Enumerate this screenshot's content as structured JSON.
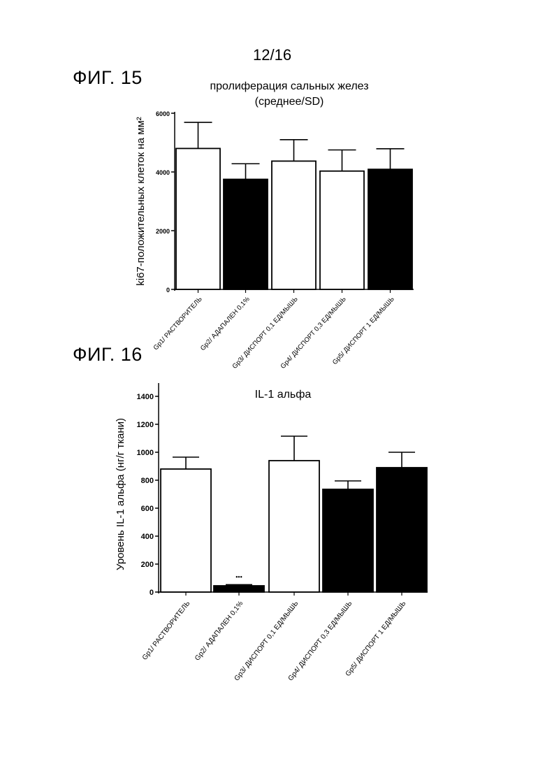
{
  "page_number": "12/16",
  "figures": [
    {
      "label": "ФИГ. 15"
    },
    {
      "label": "ФИГ. 16"
    }
  ],
  "chart_data": [
    {
      "type": "bar",
      "title": "пролиферация сальных желез",
      "subtitle": "(среднее/SD)",
      "ylabel": "ki67-положительных клеток на мм²",
      "ylim": [
        0,
        6000
      ],
      "yticks": [
        0,
        2000,
        4000,
        6000
      ],
      "categories": [
        "Gp1/ РАСТВОРИТЕЛЬ",
        "Gp2/ АДАПАЛЕН 0,1%",
        "Gp3/ ДИСПОРТ 0,1 ЕД/МЫШЬ",
        "Gp4/ ДИСПОРТ 0,3 ЕД/МЫШЬ",
        "Gp5/ ДИСПОРТ 1 ЕД/МЫШЬ"
      ],
      "values": [
        4800,
        3750,
        4370,
        4030,
        4090
      ],
      "errors": [
        890,
        530,
        730,
        720,
        700
      ],
      "bar_colors": [
        "#ffffff",
        "#000000",
        "#ffffff",
        "#ffffff",
        "#000000"
      ]
    },
    {
      "type": "bar",
      "title": "IL-1 альфа",
      "ylabel": "Уровень IL-1 альфа (нг/г ткани)",
      "ylim": [
        0,
        1400
      ],
      "yticks": [
        0,
        200,
        400,
        600,
        800,
        1000,
        1200,
        1400
      ],
      "categories": [
        "Gp1/ РАСТВОРИТЕЛЬ",
        "Gp2/ АДАПАЛЕН 0,1%",
        "Gp3/ ДИСПОРТ 0,1 ЕД/МЫШЬ",
        "Gp4/ ДИСПОРТ 0,3 ЕД/МЫШЬ",
        "Gp5/ ДИСПОРТ 1 ЕД/МЫШЬ"
      ],
      "values": [
        880,
        45,
        940,
        735,
        890
      ],
      "errors": [
        85,
        8,
        175,
        60,
        110
      ],
      "bar_colors": [
        "#ffffff",
        "#000000",
        "#ffffff",
        "#000000",
        "#000000"
      ],
      "annotations": [
        {
          "category": "Gp2/ АДАПАЛЕН 0,1%",
          "text": "•••"
        }
      ]
    }
  ]
}
